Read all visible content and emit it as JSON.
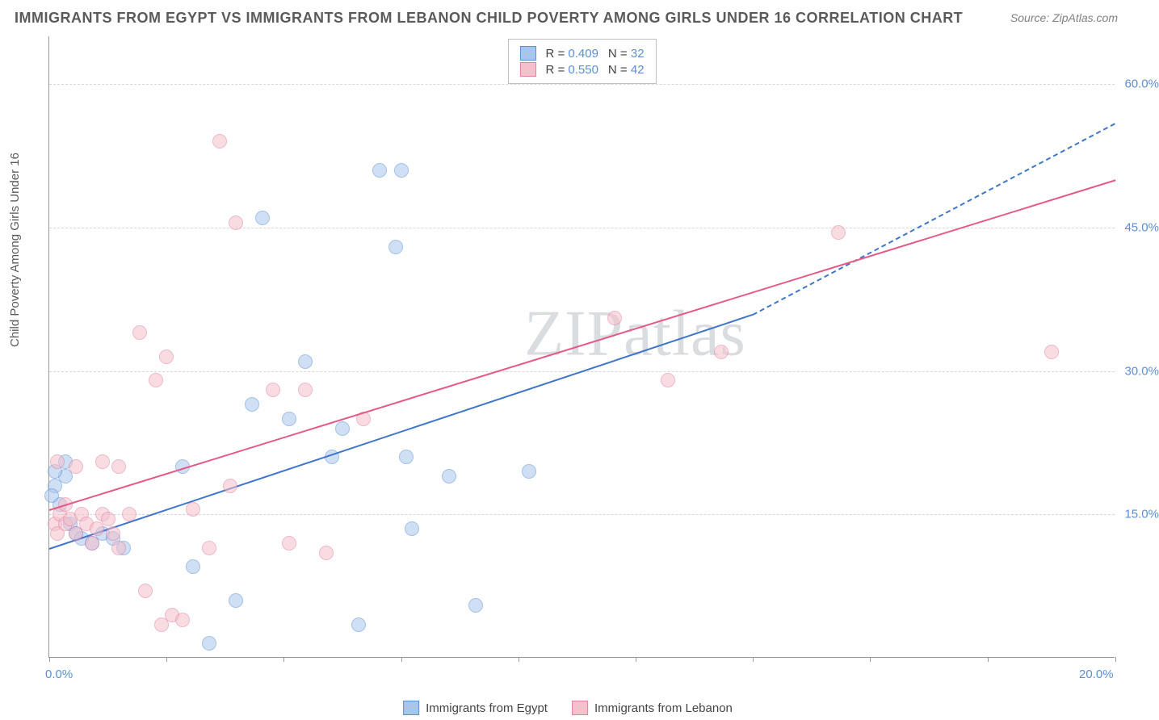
{
  "title": "IMMIGRANTS FROM EGYPT VS IMMIGRANTS FROM LEBANON CHILD POVERTY AMONG GIRLS UNDER 16 CORRELATION CHART",
  "source": "Source: ZipAtlas.com",
  "ylabel": "Child Poverty Among Girls Under 16",
  "watermark": "ZIPatlas",
  "chart": {
    "type": "scatter",
    "background_color": "#ffffff",
    "grid_color": "#d8d8d8",
    "axis_color": "#999999",
    "xlim": [
      0,
      20
    ],
    "ylim": [
      0,
      65
    ],
    "x_ticks": [
      0,
      2.2,
      4.4,
      6.6,
      8.8,
      11,
      13.2,
      15.4,
      17.6,
      20
    ],
    "x_tick_labels": {
      "0": "0.0%",
      "20": "20.0%"
    },
    "y_gridlines": [
      15,
      30,
      45,
      60
    ],
    "y_tick_labels": {
      "15": "15.0%",
      "30": "30.0%",
      "45": "45.0%",
      "60": "60.0%"
    },
    "label_color": "#5b8fd6",
    "label_fontsize": 15,
    "point_radius": 9,
    "point_opacity": 0.55,
    "series": [
      {
        "name": "Immigrants from Egypt",
        "fill": "#a8c6ec",
        "stroke": "#5b8fd6",
        "r_value": "0.409",
        "n_value": "32",
        "trend": {
          "x1": 0,
          "y1": 11.5,
          "x2": 13.2,
          "y2": 36,
          "dashed_extend": {
            "x2": 20,
            "y2": 56
          },
          "color": "#3f76c8",
          "width": 2.5
        },
        "points": [
          [
            0.1,
            18
          ],
          [
            0.2,
            16
          ],
          [
            0.3,
            19
          ],
          [
            0.4,
            14
          ],
          [
            0.5,
            13
          ],
          [
            0.6,
            12.5
          ],
          [
            0.8,
            12
          ],
          [
            1.0,
            13
          ],
          [
            1.2,
            12.5
          ],
          [
            1.4,
            11.5
          ],
          [
            2.5,
            20
          ],
          [
            3.0,
            1.5
          ],
          [
            2.7,
            9.5
          ],
          [
            3.5,
            6
          ],
          [
            3.8,
            26.5
          ],
          [
            4.0,
            46
          ],
          [
            4.5,
            25
          ],
          [
            4.8,
            31
          ],
          [
            5.3,
            21
          ],
          [
            5.5,
            24
          ],
          [
            5.8,
            3.5
          ],
          [
            6.2,
            51
          ],
          [
            6.5,
            43
          ],
          [
            6.6,
            51
          ],
          [
            6.7,
            21
          ],
          [
            6.8,
            13.5
          ],
          [
            7.5,
            19
          ],
          [
            8.0,
            5.5
          ],
          [
            9.0,
            19.5
          ],
          [
            0.1,
            19.5
          ],
          [
            0.05,
            17
          ],
          [
            0.3,
            20.5
          ]
        ]
      },
      {
        "name": "Immigrants from Lebanon",
        "fill": "#f4c0cc",
        "stroke": "#e37fa0",
        "r_value": "0.550",
        "n_value": "42",
        "trend": {
          "x1": 0,
          "y1": 15.5,
          "x2": 20,
          "y2": 50,
          "color": "#e35a87",
          "width": 2.5
        },
        "points": [
          [
            0.1,
            14
          ],
          [
            0.15,
            13
          ],
          [
            0.2,
            15
          ],
          [
            0.3,
            16
          ],
          [
            0.3,
            14
          ],
          [
            0.4,
            14.5
          ],
          [
            0.5,
            13
          ],
          [
            0.6,
            15
          ],
          [
            0.7,
            14
          ],
          [
            0.8,
            12
          ],
          [
            0.9,
            13.5
          ],
          [
            1.0,
            15
          ],
          [
            1.1,
            14.5
          ],
          [
            1.2,
            13
          ],
          [
            1.3,
            11.5
          ],
          [
            1.5,
            15
          ],
          [
            1.7,
            34
          ],
          [
            1.8,
            7
          ],
          [
            2.0,
            29
          ],
          [
            2.2,
            31.5
          ],
          [
            2.3,
            4.5
          ],
          [
            2.5,
            4
          ],
          [
            2.7,
            15.5
          ],
          [
            3.0,
            11.5
          ],
          [
            3.2,
            54
          ],
          [
            3.4,
            18
          ],
          [
            3.5,
            45.5
          ],
          [
            4.2,
            28
          ],
          [
            4.5,
            12
          ],
          [
            4.8,
            28
          ],
          [
            5.2,
            11
          ],
          [
            5.9,
            25
          ],
          [
            10.6,
            35.5
          ],
          [
            11.6,
            29
          ],
          [
            12.6,
            32
          ],
          [
            14.8,
            44.5
          ],
          [
            18.8,
            32
          ],
          [
            0.15,
            20.5
          ],
          [
            0.5,
            20
          ],
          [
            1.0,
            20.5
          ],
          [
            2.1,
            3.5
          ],
          [
            1.3,
            20
          ]
        ]
      }
    ]
  },
  "legend_bottom": [
    {
      "label": "Immigrants from Egypt",
      "fill": "#a8c6ec",
      "stroke": "#5b8fd6"
    },
    {
      "label": "Immigrants from Lebanon",
      "fill": "#f4c0cc",
      "stroke": "#e37fa0"
    }
  ]
}
